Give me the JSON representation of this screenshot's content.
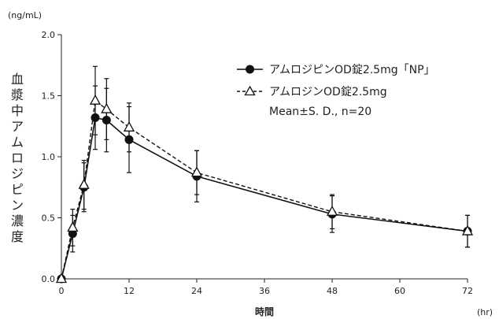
{
  "chart_data": {
    "type": "line",
    "title": "",
    "ylabel": "血漿中アムロジピン濃度",
    "xlabel": "時間",
    "y_unit": "(ng/mL)",
    "x_unit": "(hr)",
    "xlim": [
      0,
      72
    ],
    "ylim": [
      0.0,
      2.0
    ],
    "x_ticks": [
      0,
      12,
      24,
      36,
      48,
      60,
      72
    ],
    "y_ticks": [
      "0.0",
      "0.5",
      "1.0",
      "1.5",
      "2.0"
    ],
    "legend_position": "top-right",
    "legend_note": "Mean±S. D., n=20",
    "series": [
      {
        "name": "アムロジピンOD錠2.5mg「NP」",
        "marker": "filled-circle",
        "line_style": "solid",
        "color": "#111111",
        "x": [
          0,
          2,
          4,
          6,
          8,
          12,
          24,
          48,
          72
        ],
        "y": [
          0.0,
          0.37,
          0.75,
          1.32,
          1.3,
          1.14,
          0.84,
          0.53,
          0.39
        ],
        "sd": [
          0.0,
          0.15,
          0.2,
          0.26,
          0.26,
          0.27,
          0.21,
          0.15,
          0.13
        ]
      },
      {
        "name": "アムロジンOD錠2.5mg",
        "marker": "open-triangle",
        "line_style": "dashed",
        "color": "#111111",
        "x": [
          0,
          2,
          4,
          6,
          8,
          12,
          24,
          48,
          72
        ],
        "y": [
          0.0,
          0.42,
          0.77,
          1.46,
          1.39,
          1.24,
          0.87,
          0.55,
          0.39
        ],
        "sd": [
          0.0,
          0.15,
          0.2,
          0.28,
          0.25,
          0.2,
          0.18,
          0.14,
          0.13
        ]
      }
    ]
  }
}
